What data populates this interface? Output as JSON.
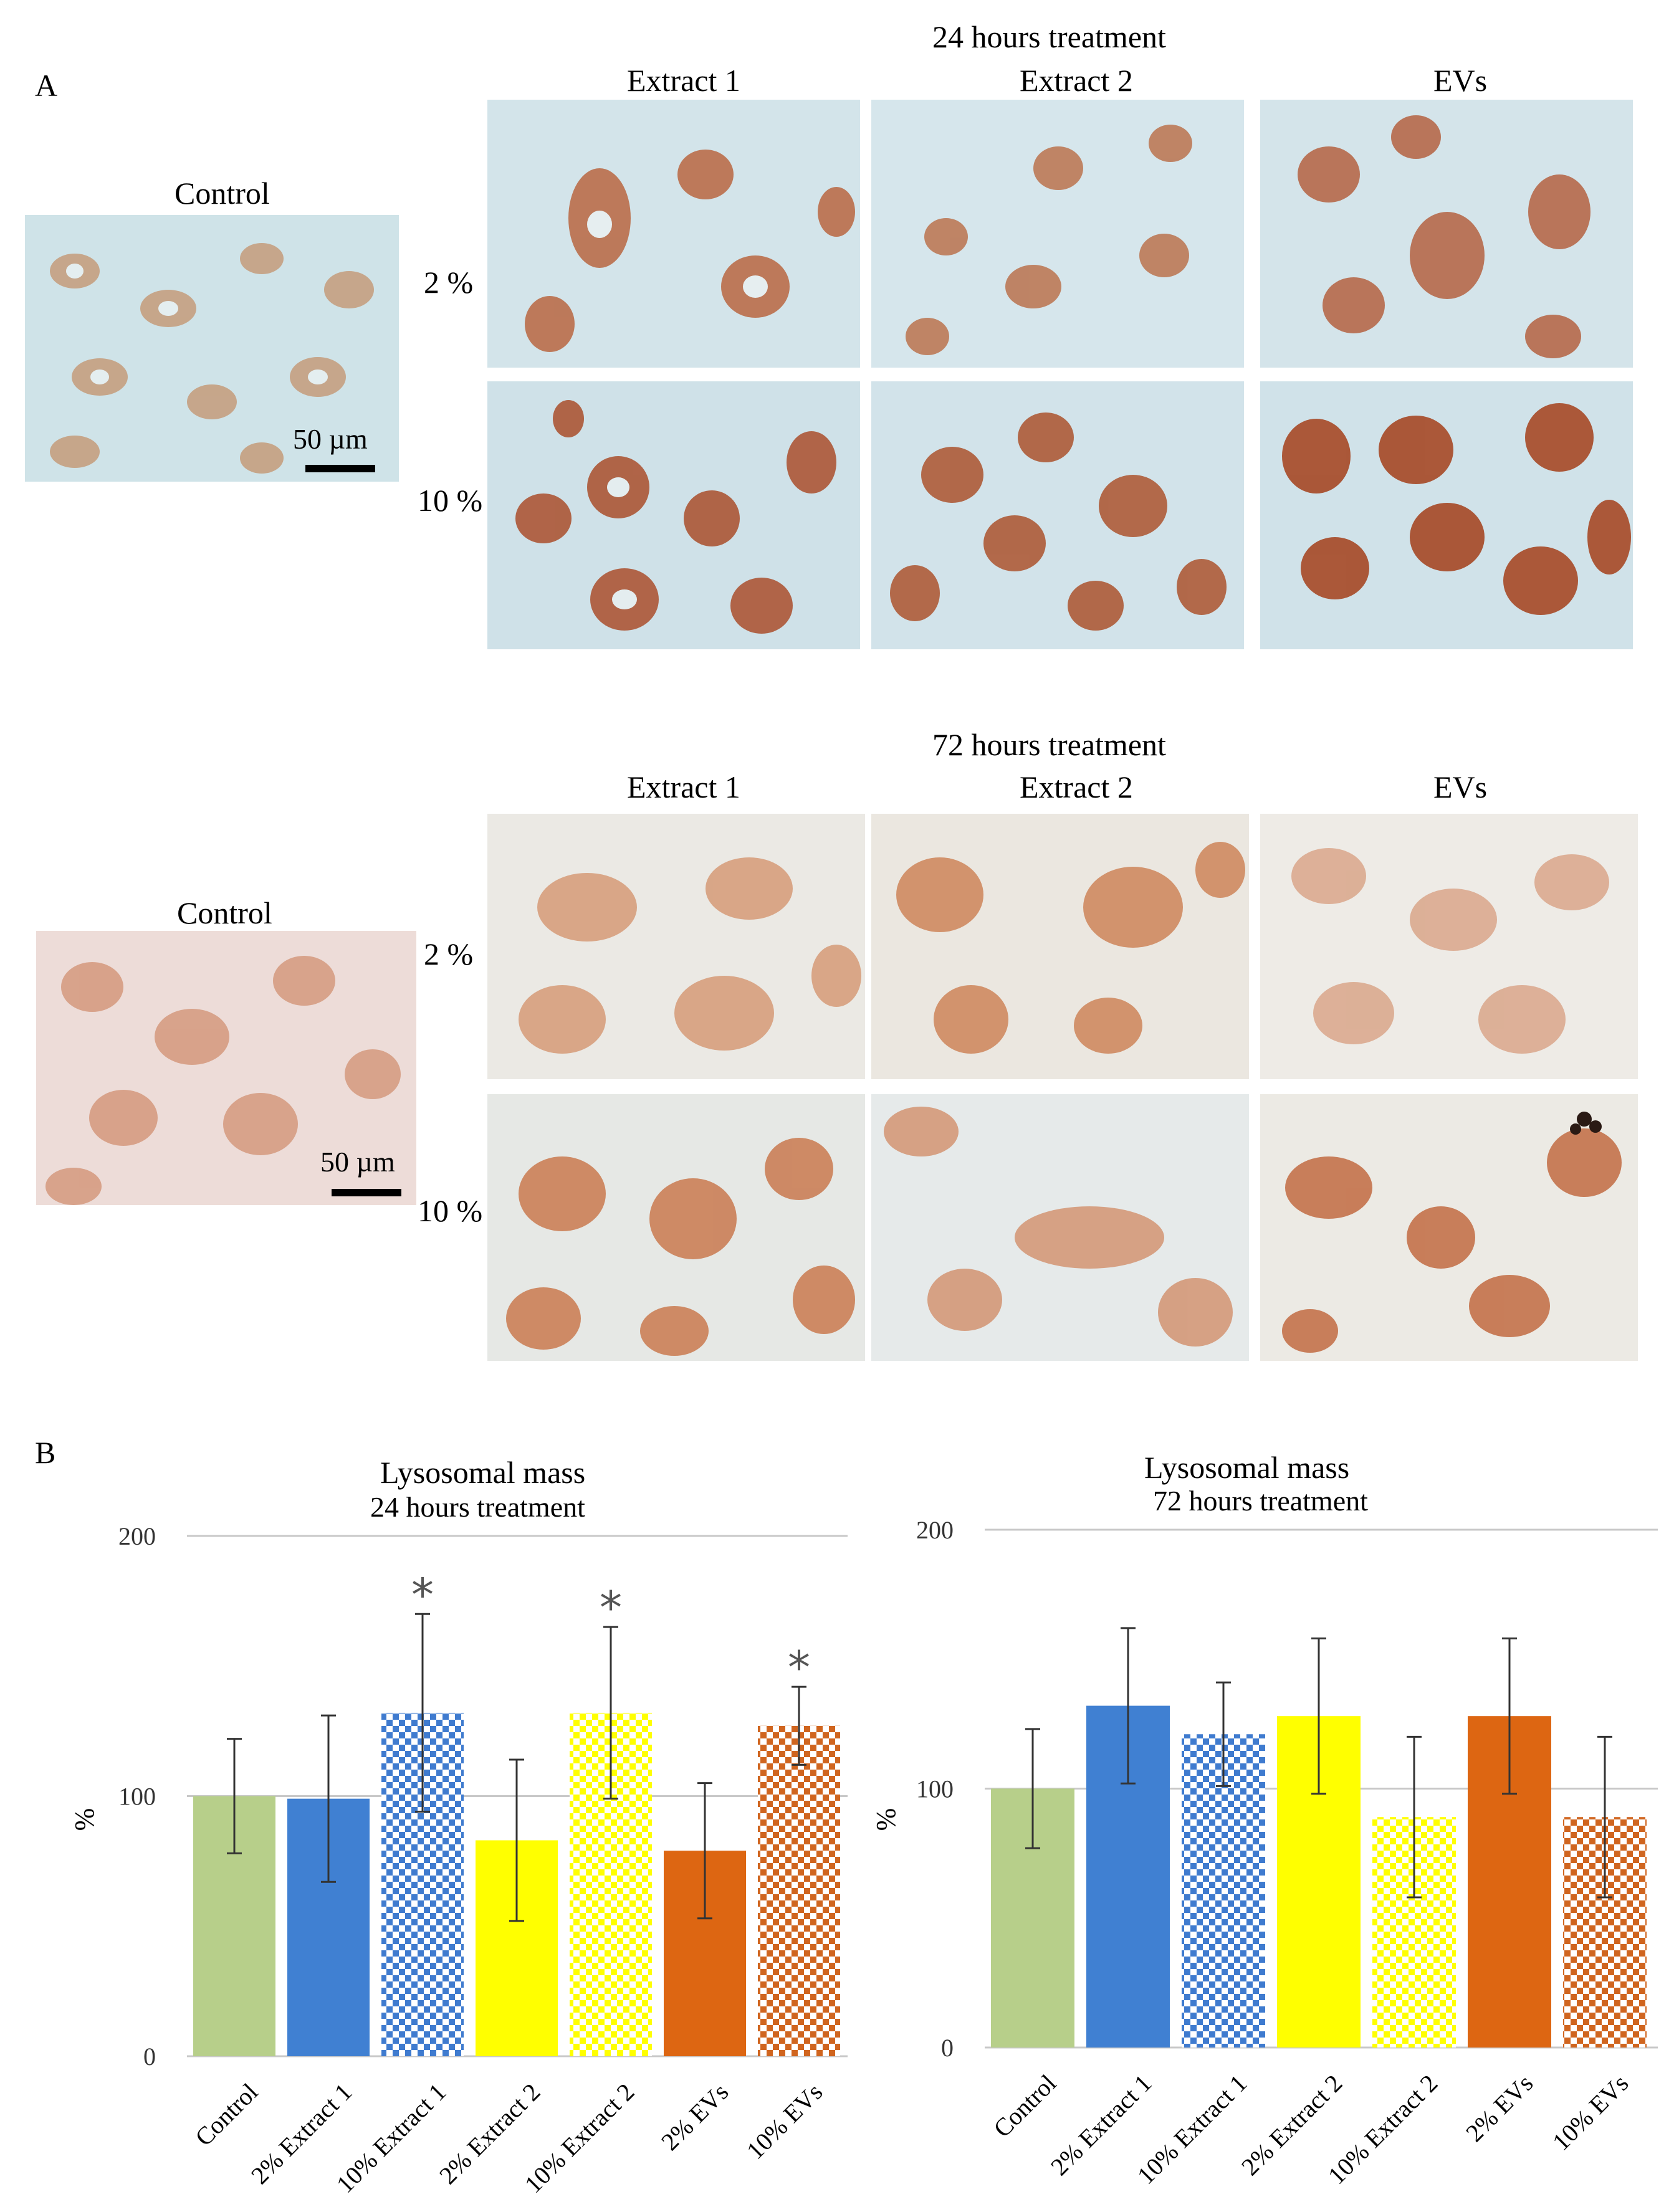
{
  "figure": {
    "panel_a": {
      "letter": "A",
      "block_24h": {
        "title": "24 hours treatment",
        "control_label": "Control",
        "col_labels": [
          "Extract 1",
          "Extract 2",
          "EVs"
        ],
        "row_labels": [
          "2 %",
          "10 %"
        ],
        "scale_bar": "50 µm"
      },
      "block_72h": {
        "title": "72 hours treatment",
        "control_label": "Control",
        "col_labels": [
          "Extract 1",
          "Extract 2",
          "EVs"
        ],
        "row_labels": [
          "2 %",
          "10 %"
        ],
        "scale_bar": "50 µm"
      }
    },
    "panel_b": {
      "letter": "B"
    }
  },
  "chart_data": [
    {
      "type": "bar",
      "title": "Lysosomal mass",
      "subtitle": "24 hours treatment",
      "ylabel": "%",
      "ylim": [
        0,
        200
      ],
      "yticks": [
        0,
        100,
        200
      ],
      "grid": true,
      "categories": [
        "Control",
        "2% Extract 1",
        "10% Extract 1",
        "2% Extract 2",
        "10% Extract 2",
        "2% EVs",
        "10% EVs"
      ],
      "values": [
        100,
        99,
        132,
        83,
        132,
        79,
        127
      ],
      "errors": [
        22,
        32,
        38,
        31,
        33,
        26,
        15
      ],
      "colors": [
        "#b7cf8a",
        "#4080d2",
        "#3f7bcf",
        "#ffff00",
        "#ffff00",
        "#dd6612",
        "#d0651f"
      ],
      "patterns": [
        "solid",
        "solid",
        "checker",
        "solid",
        "checker",
        "solid",
        "checker"
      ],
      "significance": [
        "",
        "",
        "*",
        "",
        "*",
        "",
        "*"
      ]
    },
    {
      "type": "bar",
      "title": "Lysosomal mass",
      "subtitle": "72 hours treatment",
      "ylabel": "%",
      "ylim": [
        0,
        200
      ],
      "yticks": [
        0,
        100,
        200
      ],
      "grid": true,
      "categories": [
        "Control",
        "2% Extract 1",
        "10% Extract 1",
        "2% Extract 2",
        "10% Extract 2",
        "2% EVs",
        "10% EVs"
      ],
      "values": [
        100,
        132,
        121,
        128,
        89,
        128,
        89
      ],
      "errors": [
        23,
        30,
        20,
        30,
        31,
        30,
        31
      ],
      "colors": [
        "#b7cf8a",
        "#4080d2",
        "#3f7bcf",
        "#ffff00",
        "#ffff00",
        "#dd6612",
        "#d0651f"
      ],
      "patterns": [
        "solid",
        "solid",
        "checker",
        "solid",
        "checker",
        "solid",
        "checker"
      ],
      "significance": [
        "",
        "",
        "",
        "",
        "",
        "",
        ""
      ]
    }
  ]
}
